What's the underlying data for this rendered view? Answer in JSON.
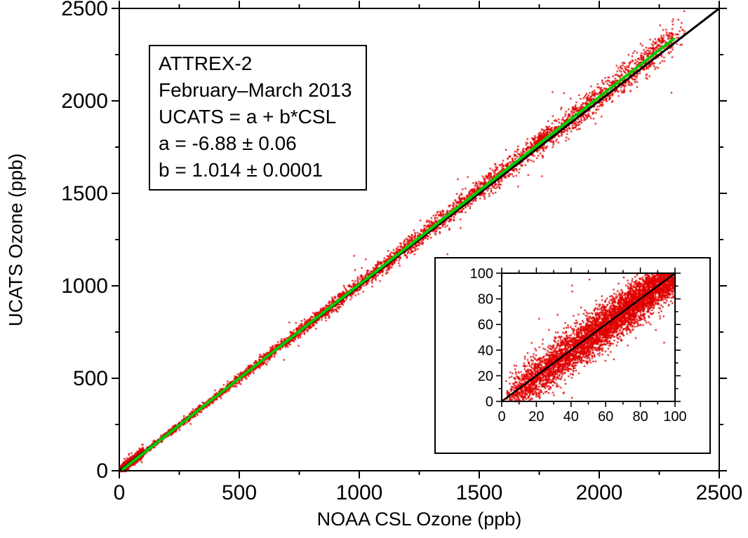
{
  "chart_data": {
    "type": "scatter",
    "title": "",
    "xlabel": "NOAA CSL Ozone (ppb)",
    "ylabel": "UCATS Ozone (ppb)",
    "xlim": [
      0,
      2500
    ],
    "ylim": [
      0,
      2500
    ],
    "xticks": [
      0,
      500,
      1000,
      1500,
      2000,
      2500
    ],
    "yticks": [
      0,
      500,
      1000,
      1500,
      2000,
      2500
    ],
    "minor_step": 250,
    "grid": false,
    "annotation": {
      "lines": [
        "ATTREX-2",
        "February–March  2013",
        "UCATS = a + b*CSL",
        "a = -6.88 ± 0.06",
        "b = 1.014 ± 0.0001"
      ]
    },
    "fit": {
      "a": -6.88,
      "b": 1.014,
      "a_err": 0.06,
      "b_err": 0.0001,
      "x_range": [
        15,
        2310
      ],
      "color": "#00cc00"
    },
    "identity_line": {
      "color": "#000000",
      "range": [
        0,
        2500
      ]
    },
    "points": {
      "color": "#e00000",
      "seed": 42,
      "n_high": 4800,
      "x_max": 2310,
      "sigma_high_base": 4,
      "sigma_high_slope": 0.017,
      "n_low": 5200,
      "low_range": [
        2,
        100
      ],
      "sigma_low": 8.5
    },
    "inset": {
      "xlim": [
        0,
        100
      ],
      "ylim": [
        0,
        100
      ],
      "xticks": [
        0,
        20,
        40,
        60,
        80,
        100
      ],
      "yticks": [
        0,
        20,
        40,
        60,
        80,
        100
      ],
      "minor_step": 10
    }
  }
}
